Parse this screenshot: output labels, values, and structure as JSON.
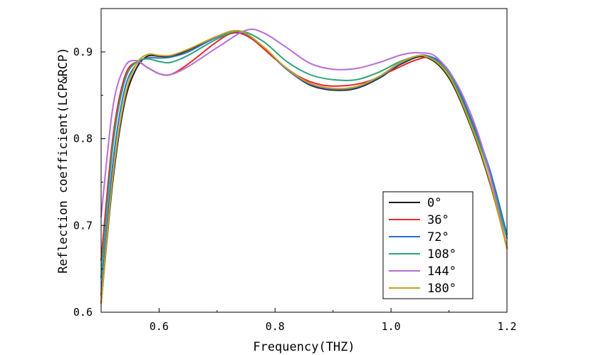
{
  "chart_data": {
    "type": "line",
    "title": "",
    "xlabel": "Frequency(THZ)",
    "ylabel": "Reflection coefficient(LCP&RCP)",
    "xlim": [
      0.5,
      1.2
    ],
    "ylim": [
      0.6,
      0.95
    ],
    "xticks": [
      0.6,
      0.8,
      1.0,
      1.2
    ],
    "xtick_labels": [
      "0.6",
      "0.8",
      "1.0",
      "1.2"
    ],
    "yticks": [
      0.6,
      0.7,
      0.8,
      0.9
    ],
    "ytick_labels": [
      "0.6",
      "0.7",
      "0.8",
      "0.9"
    ],
    "grid": false,
    "legend_position": "bottom-right",
    "series": [
      {
        "name": "0°",
        "color": "#1a1a1a",
        "points": [
          [
            0.5,
            0.61
          ],
          [
            0.52,
            0.75
          ],
          [
            0.54,
            0.84
          ],
          [
            0.56,
            0.88
          ],
          [
            0.58,
            0.895
          ],
          [
            0.6,
            0.895
          ],
          [
            0.62,
            0.895
          ],
          [
            0.65,
            0.902
          ],
          [
            0.7,
            0.918
          ],
          [
            0.74,
            0.924
          ],
          [
            0.78,
            0.905
          ],
          [
            0.82,
            0.88
          ],
          [
            0.86,
            0.862
          ],
          [
            0.9,
            0.856
          ],
          [
            0.94,
            0.858
          ],
          [
            0.98,
            0.87
          ],
          [
            1.02,
            0.887
          ],
          [
            1.06,
            0.894
          ],
          [
            1.1,
            0.87
          ],
          [
            1.14,
            0.81
          ],
          [
            1.17,
            0.75
          ],
          [
            1.2,
            0.675
          ]
        ]
      },
      {
        "name": "36°",
        "color": "#e8262b",
        "points": [
          [
            0.5,
            0.66
          ],
          [
            0.52,
            0.8
          ],
          [
            0.54,
            0.87
          ],
          [
            0.56,
            0.888
          ],
          [
            0.58,
            0.882
          ],
          [
            0.6,
            0.875
          ],
          [
            0.62,
            0.874
          ],
          [
            0.65,
            0.886
          ],
          [
            0.7,
            0.912
          ],
          [
            0.73,
            0.922
          ],
          [
            0.76,
            0.915
          ],
          [
            0.8,
            0.892
          ],
          [
            0.84,
            0.872
          ],
          [
            0.88,
            0.862
          ],
          [
            0.92,
            0.861
          ],
          [
            0.96,
            0.866
          ],
          [
            1.0,
            0.878
          ],
          [
            1.04,
            0.89
          ],
          [
            1.07,
            0.893
          ],
          [
            1.1,
            0.876
          ],
          [
            1.14,
            0.818
          ],
          [
            1.17,
            0.76
          ],
          [
            1.2,
            0.685
          ]
        ]
      },
      {
        "name": "72°",
        "color": "#2b6fcf",
        "points": [
          [
            0.5,
            0.62
          ],
          [
            0.52,
            0.77
          ],
          [
            0.54,
            0.855
          ],
          [
            0.56,
            0.885
          ],
          [
            0.58,
            0.893
          ],
          [
            0.6,
            0.893
          ],
          [
            0.62,
            0.894
          ],
          [
            0.65,
            0.9
          ],
          [
            0.7,
            0.917
          ],
          [
            0.74,
            0.923
          ],
          [
            0.78,
            0.906
          ],
          [
            0.82,
            0.88
          ],
          [
            0.86,
            0.863
          ],
          [
            0.9,
            0.857
          ],
          [
            0.94,
            0.859
          ],
          [
            0.98,
            0.871
          ],
          [
            1.02,
            0.888
          ],
          [
            1.06,
            0.896
          ],
          [
            1.1,
            0.878
          ],
          [
            1.14,
            0.82
          ],
          [
            1.17,
            0.765
          ],
          [
            1.2,
            0.69
          ]
        ]
      },
      {
        "name": "108°",
        "color": "#2aa37e",
        "points": [
          [
            0.5,
            0.64
          ],
          [
            0.52,
            0.79
          ],
          [
            0.54,
            0.865
          ],
          [
            0.56,
            0.888
          ],
          [
            0.58,
            0.892
          ],
          [
            0.6,
            0.889
          ],
          [
            0.62,
            0.888
          ],
          [
            0.65,
            0.896
          ],
          [
            0.7,
            0.915
          ],
          [
            0.74,
            0.924
          ],
          [
            0.78,
            0.912
          ],
          [
            0.82,
            0.889
          ],
          [
            0.86,
            0.874
          ],
          [
            0.9,
            0.868
          ],
          [
            0.94,
            0.868
          ],
          [
            0.98,
            0.877
          ],
          [
            1.02,
            0.89
          ],
          [
            1.06,
            0.895
          ],
          [
            1.1,
            0.875
          ],
          [
            1.14,
            0.815
          ],
          [
            1.17,
            0.76
          ],
          [
            1.2,
            0.685
          ]
        ]
      },
      {
        "name": "144°",
        "color": "#b56fd6",
        "points": [
          [
            0.5,
            0.71
          ],
          [
            0.52,
            0.835
          ],
          [
            0.54,
            0.882
          ],
          [
            0.56,
            0.89
          ],
          [
            0.58,
            0.882
          ],
          [
            0.6,
            0.875
          ],
          [
            0.62,
            0.874
          ],
          [
            0.65,
            0.883
          ],
          [
            0.7,
            0.905
          ],
          [
            0.75,
            0.925
          ],
          [
            0.78,
            0.922
          ],
          [
            0.82,
            0.905
          ],
          [
            0.86,
            0.887
          ],
          [
            0.9,
            0.88
          ],
          [
            0.94,
            0.881
          ],
          [
            0.98,
            0.888
          ],
          [
            1.02,
            0.897
          ],
          [
            1.05,
            0.899
          ],
          [
            1.08,
            0.893
          ],
          [
            1.12,
            0.855
          ],
          [
            1.16,
            0.785
          ],
          [
            1.2,
            0.675
          ]
        ]
      },
      {
        "name": "180°",
        "color": "#c9a21a",
        "points": [
          [
            0.5,
            0.61
          ],
          [
            0.52,
            0.755
          ],
          [
            0.54,
            0.845
          ],
          [
            0.56,
            0.885
          ],
          [
            0.58,
            0.897
          ],
          [
            0.6,
            0.896
          ],
          [
            0.62,
            0.896
          ],
          [
            0.65,
            0.903
          ],
          [
            0.7,
            0.918
          ],
          [
            0.74,
            0.924
          ],
          [
            0.78,
            0.906
          ],
          [
            0.82,
            0.881
          ],
          [
            0.86,
            0.864
          ],
          [
            0.9,
            0.858
          ],
          [
            0.94,
            0.86
          ],
          [
            0.98,
            0.872
          ],
          [
            1.02,
            0.889
          ],
          [
            1.06,
            0.895
          ],
          [
            1.1,
            0.872
          ],
          [
            1.14,
            0.812
          ],
          [
            1.17,
            0.752
          ],
          [
            1.2,
            0.673
          ]
        ]
      }
    ]
  }
}
